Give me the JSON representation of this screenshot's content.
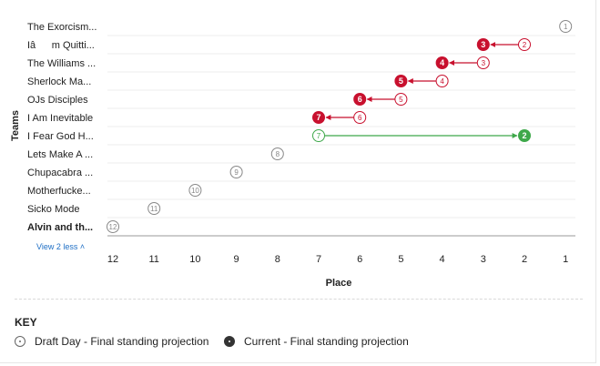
{
  "chart_data": {
    "type": "scatter",
    "xlabel": "Place",
    "ylabel": "Teams",
    "x_ticks": [
      "12",
      "11",
      "10",
      "9",
      "8",
      "7",
      "6",
      "5",
      "4",
      "3",
      "2",
      "1"
    ],
    "xlim": [
      12,
      1
    ],
    "legend_position": "bottom",
    "teams": [
      {
        "label": "The Exorcism...",
        "draft": 1,
        "current": null,
        "bold": false
      },
      {
        "label": "Iâm Quitti...",
        "draft": 2,
        "current": 3,
        "bold": false
      },
      {
        "label": "The Williams ...",
        "draft": 3,
        "current": 4,
        "bold": false
      },
      {
        "label": "Sherlock Ma...",
        "draft": 4,
        "current": 5,
        "bold": false
      },
      {
        "label": "OJs Disciples",
        "draft": 5,
        "current": 6,
        "bold": false
      },
      {
        "label": "I Am Inevitable",
        "draft": 6,
        "current": 7,
        "bold": false
      },
      {
        "label": "I Fear God H...",
        "draft": 7,
        "current": 2,
        "bold": false
      },
      {
        "label": "Lets Make A ...",
        "draft": 8,
        "current": null,
        "bold": false
      },
      {
        "label": "Chupacabra ...",
        "draft": 9,
        "current": null,
        "bold": false
      },
      {
        "label": "Motherfucke...",
        "draft": 10,
        "current": null,
        "bold": false
      },
      {
        "label": "Sicko Mode",
        "draft": 11,
        "current": null,
        "bold": false
      },
      {
        "label": "Alvin and th...",
        "draft": 12,
        "current": null,
        "bold": true
      }
    ],
    "colors": {
      "decline": "#c8102e",
      "improve": "#3ea84a",
      "neutral": "#888888"
    }
  },
  "ui": {
    "view_less_label": "View 2 less ˄",
    "key_title": "KEY",
    "key_draft_label": "Draft Day - Final standing projection",
    "key_current_label": "Current - Final standing projection"
  }
}
